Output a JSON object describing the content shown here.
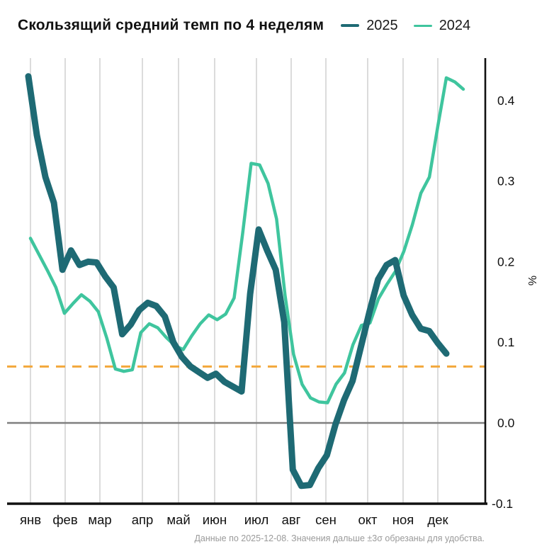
{
  "header": {
    "title": "Скользящий средний темп по 4 неделям",
    "legend": [
      {
        "label": "2025",
        "color": "#1e6a74"
      },
      {
        "label": "2024",
        "color": "#3fc59e"
      }
    ]
  },
  "caption": "Данные по 2025-12-08. Значения дальше ±3σ обрезаны для удобства.",
  "colors": {
    "series_2025": "#1e6a74",
    "series_2024": "#3fc59e",
    "threshold_dashed": "#f3a83b",
    "zero_line": "#7f7f7f",
    "gridline": "#cccccc",
    "axis": "#111111",
    "caption_text": "#9a9a9a"
  },
  "chart_data": {
    "type": "line",
    "title": "Скользящий средний темп по 4 неделям",
    "xlabel": "",
    "ylabel": "%",
    "ylim": [
      -0.102,
      0.453
    ],
    "grid": "vertical-months",
    "legend_position": "top-right",
    "x_tick_labels": [
      "янв",
      "фев",
      "мар",
      "апр",
      "май",
      "июн",
      "июл",
      "авг",
      "сен",
      "окт",
      "ноя",
      "дек"
    ],
    "y_ticks": [
      {
        "value": 0.4,
        "label": "0.4"
      },
      {
        "value": 0.3,
        "label": "0.3"
      },
      {
        "value": 0.2,
        "label": "0.2"
      },
      {
        "value": 0.1,
        "label": "0.1"
      },
      {
        "value": 0.0,
        "label": "0.0"
      },
      {
        "value": -0.1,
        "label": "-0.1"
      }
    ],
    "reference_lines": {
      "dashed_threshold_value": 0.07,
      "zero_value": 0.0
    },
    "x_unit": "week of year",
    "series": [
      {
        "name": "2025",
        "color": "#1e6a74",
        "stroke_width": 9,
        "values": [
          0.43,
          0.357,
          0.305,
          0.273,
          0.19,
          0.214,
          0.196,
          0.2,
          0.199,
          0.182,
          0.168,
          0.11,
          0.122,
          0.14,
          0.149,
          0.145,
          0.132,
          0.1,
          0.082,
          0.07,
          0.063,
          0.056,
          0.061,
          0.051,
          0.045,
          0.039,
          0.16,
          0.24,
          0.214,
          0.19,
          0.125,
          -0.058,
          -0.078,
          -0.077,
          -0.056,
          -0.04,
          -0.002,
          0.028,
          0.052,
          0.095,
          0.138,
          0.178,
          0.196,
          0.202,
          0.158,
          0.134,
          0.117,
          0.114,
          0.099,
          0.086
        ]
      },
      {
        "name": "2024",
        "color": "#3fc59e",
        "stroke_width": 4.5,
        "values": [
          0.229,
          0.209,
          0.189,
          0.168,
          0.136,
          0.148,
          0.159,
          0.151,
          0.138,
          0.105,
          0.067,
          0.064,
          0.066,
          0.112,
          0.123,
          0.118,
          0.106,
          0.096,
          0.091,
          0.108,
          0.123,
          0.134,
          0.128,
          0.135,
          0.155,
          0.235,
          0.322,
          0.32,
          0.297,
          0.253,
          0.158,
          0.085,
          0.048,
          0.031,
          0.026,
          0.025,
          0.048,
          0.062,
          0.097,
          0.121,
          0.124,
          0.154,
          0.172,
          0.188,
          0.213,
          0.246,
          0.285,
          0.305,
          0.368,
          0.428,
          0.423,
          0.414
        ]
      }
    ]
  }
}
